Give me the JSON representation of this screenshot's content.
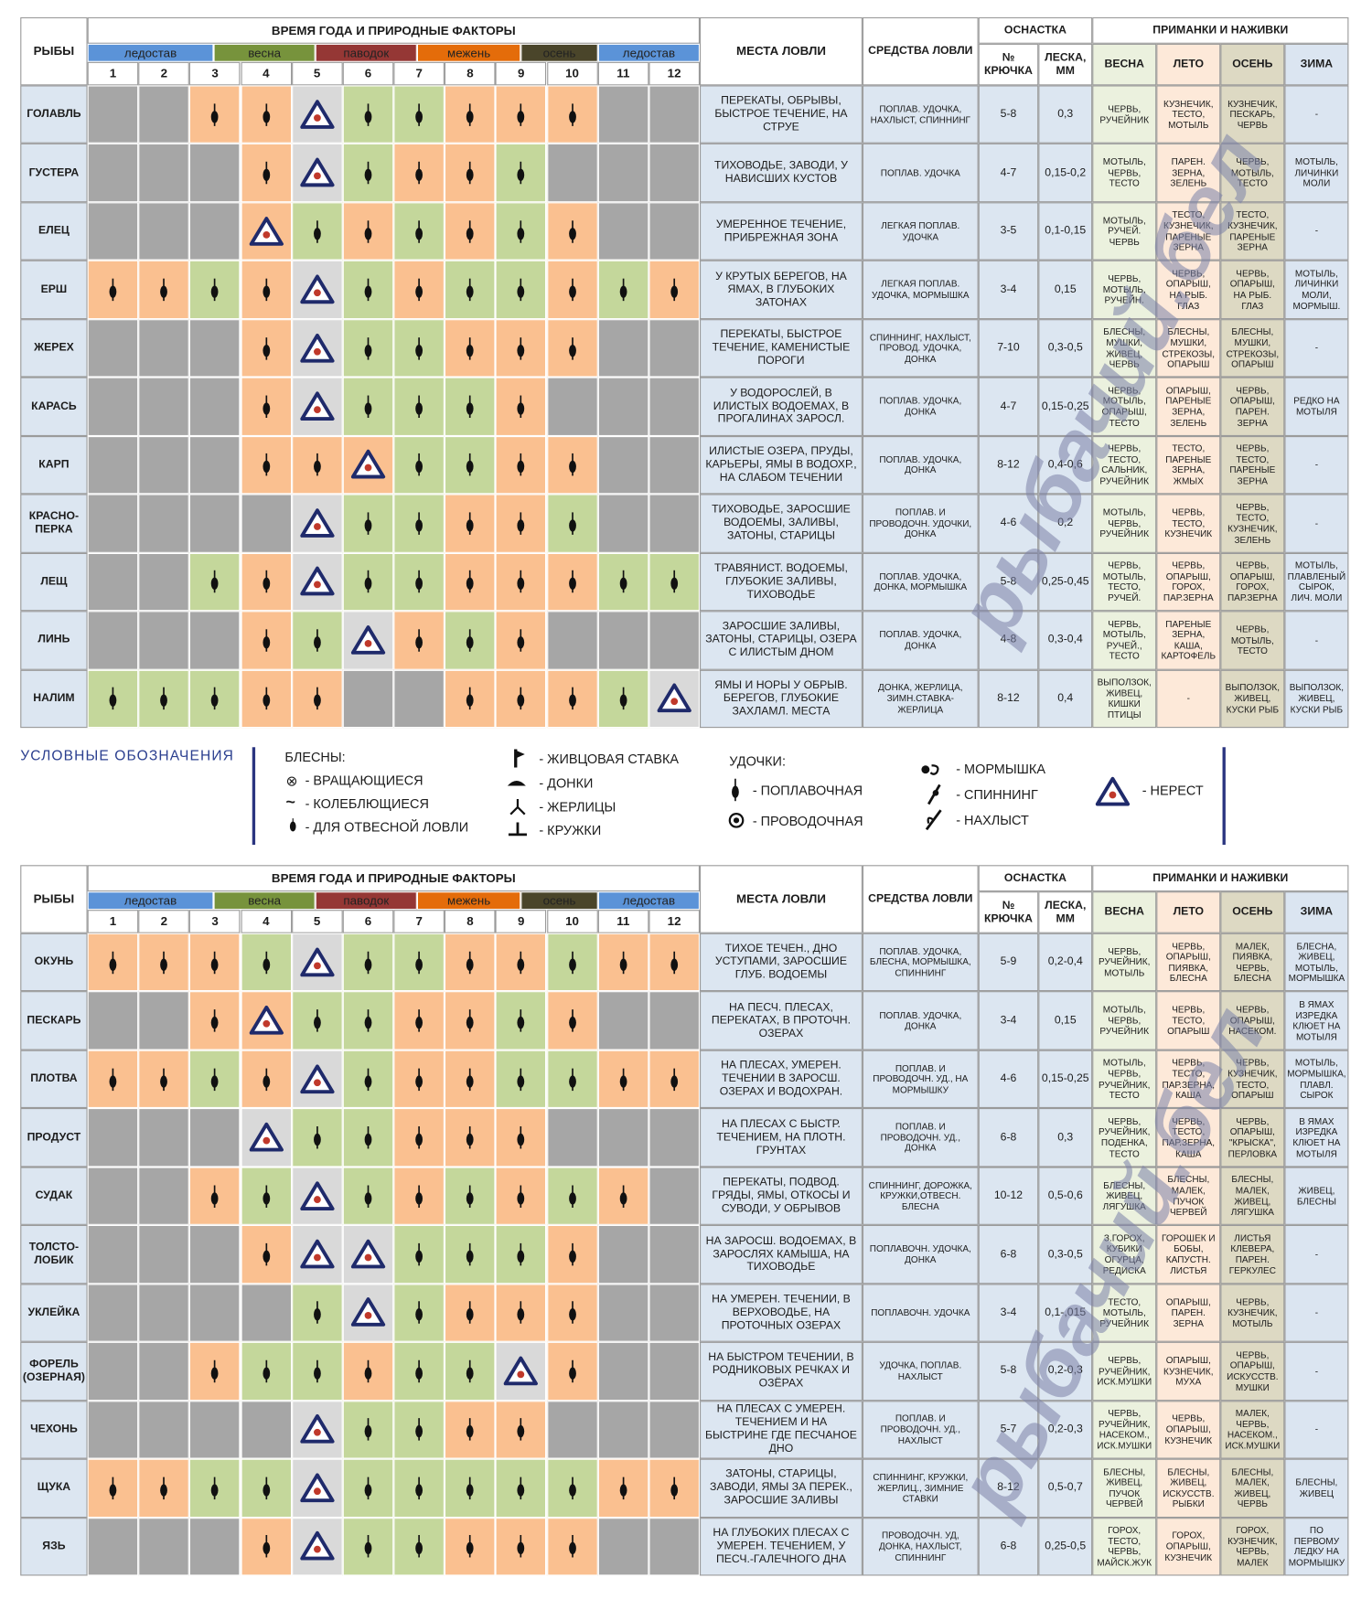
{
  "header": {
    "fish": "РЫБЫ",
    "time": "ВРЕМЯ ГОДА И ПРИРОДНЫЕ ФАКТОРЫ",
    "seasons": [
      {
        "name": "ледостав",
        "color": "#5b93d8"
      },
      {
        "name": "весна",
        "color": "#77933c"
      },
      {
        "name": "паводок",
        "color": "#953735"
      },
      {
        "name": "межень",
        "color": "#e46c0a"
      },
      {
        "name": "осень",
        "color": "#4a452a"
      },
      {
        "name": "ледостав",
        "color": "#5b93d8"
      }
    ],
    "months": [
      1,
      2,
      3,
      4,
      5,
      6,
      7,
      8,
      9,
      10,
      11,
      12
    ],
    "places": "МЕСТА ЛОВЛИ",
    "tackle": "СРЕДСТВА ЛОВЛИ",
    "rig": "ОСНАСТКА",
    "hook": "№ КРЮЧКА",
    "line": "ЛЕСКА, ММ",
    "baits": "ПРИМАНКИ И НАЖИВКИ",
    "bait_seasons": [
      "ВЕСНА",
      "ЛЕТО",
      "ОСЕНЬ",
      "ЗИМА"
    ]
  },
  "month_colors": {
    "gray": "#a6a6a6",
    "orange": "#fac090",
    "green": "#c4d79b",
    "spawn": "#d9d9d9",
    "spawn-orange": "#fac090"
  },
  "tables": [
    {
      "rows": [
        {
          "fish": "ГОЛАВЛЬ",
          "months": [
            "gray",
            "gray",
            "orange",
            "orange",
            "spawn",
            "green",
            "green",
            "orange",
            "orange",
            "orange",
            "gray",
            "gray"
          ],
          "places": "ПЕРЕКАТЫ, ОБРЫВЫ, БЫСТРОЕ ТЕЧЕНИЕ, НА СТРУЕ",
          "tackle": "ПОПЛАВ. УДОЧКА, НАХЛЫСТ, СПИННИНГ",
          "hook": "5-8",
          "line": "0,3",
          "baits": [
            "ЧЕРВЬ, РУЧЕЙНИК",
            "КУЗНЕЧИК, ТЕСТО, МОТЫЛЬ",
            "КУЗНЕЧИК, ПЕСКАРЬ, ЧЕРВЬ",
            "-"
          ]
        },
        {
          "fish": "ГУСТЕРА",
          "months": [
            "gray",
            "gray",
            "gray",
            "orange",
            "spawn",
            "green",
            "orange",
            "orange",
            "green",
            "gray",
            "gray",
            "gray"
          ],
          "places": "ТИХОВОДЬЕ, ЗАВОДИ, У НАВИСШИХ КУСТОВ",
          "tackle": "ПОПЛАВ. УДОЧКА",
          "hook": "4-7",
          "line": "0,15-0,2",
          "baits": [
            "МОТЫЛЬ, ЧЕРВЬ, ТЕСТО",
            "ПАРЕН. ЗЕРНА, ЗЕЛЕНЬ",
            "ЧЕРВЬ, МОТЫЛЬ, ТЕСТО",
            "МОТЫЛЬ, ЛИЧИНКИ МОЛИ"
          ]
        },
        {
          "fish": "ЕЛЕЦ",
          "months": [
            "gray",
            "gray",
            "gray",
            "spawn-orange",
            "green",
            "orange",
            "green",
            "orange",
            "green",
            "orange",
            "gray",
            "gray"
          ],
          "places": "УМЕРЕННОЕ ТЕЧЕНИЕ, ПРИБРЕЖНАЯ ЗОНА",
          "tackle": "ЛЕГКАЯ ПОПЛАВ. УДОЧКА",
          "hook": "3-5",
          "line": "0,1-0,15",
          "baits": [
            "МОТЫЛЬ, РУЧЕЙ. ЧЕРВЬ",
            "ТЕСТО, КУЗНЕЧИК, ПАРЕНЫЕ ЗЕРНА",
            "ТЕСТО, КУЗНЕЧИК, ПАРЕНЫЕ ЗЕРНА",
            "-"
          ]
        },
        {
          "fish": "ЕРШ",
          "months": [
            "orange",
            "orange",
            "green",
            "orange",
            "spawn",
            "green",
            "orange",
            "green",
            "green",
            "orange",
            "green",
            "orange"
          ],
          "places": "У КРУТЫХ БЕРЕГОВ, НА ЯМАХ, В ГЛУБОКИХ ЗАТОНАХ",
          "tackle": "ЛЕГКАЯ ПОПЛАВ. УДОЧКА, МОРМЫШКА",
          "hook": "3-4",
          "line": "0,15",
          "baits": [
            "ЧЕРВЬ, МОТЫЛЬ, РУЧЕЙН.",
            "ЧЕРВЬ, ОПАРЫШ, НА РЫБ. ГЛАЗ",
            "ЧЕРВЬ, ОПАРЫШ, НА РЫБ. ГЛАЗ",
            "МОТЫЛЬ, ЛИЧИНКИ МОЛИ, МОРМЫШ."
          ]
        },
        {
          "fish": "ЖЕРЕХ",
          "months": [
            "gray",
            "gray",
            "gray",
            "orange",
            "spawn",
            "green",
            "green",
            "orange",
            "orange",
            "orange",
            "gray",
            "gray"
          ],
          "places": "ПЕРЕКАТЫ, БЫСТРОЕ ТЕЧЕНИЕ, КАМЕНИСТЫЕ ПОРОГИ",
          "tackle": "СПИННИНГ, НАХЛЫСТ, ПРОВОД. УДОЧКА, ДОНКА",
          "hook": "7-10",
          "line": "0,3-0,5",
          "baits": [
            "БЛЕСНЫ, МУШКИ, ЖИВЕЦ, ЧЕРВЬ",
            "БЛЕСНЫ, МУШКИ, СТРЕКОЗЫ, ОПАРЫШ",
            "БЛЕСНЫ, МУШКИ, СТРЕКОЗЫ, ОПАРЫШ",
            "-"
          ]
        },
        {
          "fish": "КАРАСЬ",
          "months": [
            "gray",
            "gray",
            "gray",
            "orange",
            "spawn",
            "green",
            "green",
            "green",
            "orange",
            "gray",
            "gray",
            "gray"
          ],
          "places": "У ВОДОРОСЛЕЙ, В ИЛИСТЫХ ВОДОЕМАХ, В ПРОГАЛИНАХ ЗАРОСЛ.",
          "tackle": "ПОПЛАВ. УДОЧКА, ДОНКА",
          "hook": "4-7",
          "line": "0,15-0,25",
          "baits": [
            "ЧЕРВЬ, МОТЫЛЬ, ОПАРЫШ, ТЕСТО",
            "ОПАРЫШ, ПАРЕНЫЕ ЗЕРНА, ЗЕЛЕНЬ",
            "ЧЕРВЬ, ОПАРЫШ, ПАРЕН. ЗЕРНА",
            "РЕДКО НА МОТЫЛЯ"
          ]
        },
        {
          "fish": "КАРП",
          "months": [
            "gray",
            "gray",
            "gray",
            "orange",
            "orange",
            "spawn-orange",
            "green",
            "green",
            "orange",
            "orange",
            "gray",
            "gray"
          ],
          "places": "ИЛИСТЫЕ ОЗЕРА, ПРУДЫ, КАРЬЕРЫ, ЯМЫ В ВОДОХР., НА СЛАБОМ ТЕЧЕНИИ",
          "tackle": "ПОПЛАВ. УДОЧКА, ДОНКА",
          "hook": "8-12",
          "line": "0,4-0,6",
          "baits": [
            "ЧЕРВЬ, ТЕСТО, САЛЬНИК, РУЧЕЙНИК",
            "ТЕСТО, ПАРЕНЫЕ ЗЕРНА, ЖМЫХ",
            "ЧЕРВЬ, ТЕСТО, ПАРЕНЫЕ ЗЕРНА",
            "-"
          ]
        },
        {
          "fish": "КРАСНО-ПЕРКА",
          "months": [
            "gray",
            "gray",
            "gray",
            "gray",
            "spawn",
            "green",
            "green",
            "orange",
            "orange",
            "green",
            "gray",
            "gray"
          ],
          "places": "ТИХОВОДЬЕ, ЗАРОСШИЕ ВОДОЕМЫ, ЗАЛИВЫ, ЗАТОНЫ, СТАРИЦЫ",
          "tackle": "ПОПЛАВ. И ПРОВОДОЧН. УДОЧКИ, ДОНКА",
          "hook": "4-6",
          "line": "0,2",
          "baits": [
            "МОТЫЛЬ, ЧЕРВЬ, РУЧЕЙНИК",
            "ЧЕРВЬ, ТЕСТО, КУЗНЕЧИК",
            "ЧЕРВЬ, ТЕСТО, КУЗНЕЧИК, ЗЕЛЕНЬ",
            "-"
          ]
        },
        {
          "fish": "ЛЕЩ",
          "months": [
            "gray",
            "gray",
            "green",
            "orange",
            "spawn",
            "green",
            "green",
            "orange",
            "orange",
            "orange",
            "green",
            "green"
          ],
          "places": "ТРАВЯНИСТ. ВОДОЕМЫ, ГЛУБОКИЕ ЗАЛИВЫ, ТИХОВОДЬЕ",
          "tackle": "ПОПЛАВ. УДОЧКА, ДОНКА, МОРМЫШКА",
          "hook": "5-8",
          "line": "0,25-0,45",
          "baits": [
            "ЧЕРВЬ, МОТЫЛЬ, ТЕСТО, РУЧЕЙ.",
            "ЧЕРВЬ, ОПАРЫШ, ГОРОХ, ПАР.ЗЕРНА",
            "ЧЕРВЬ, ОПАРЫШ, ГОРОХ, ПАР.ЗЕРНА",
            "МОТЫЛЬ, ПЛАВЛЕНЫЙ СЫРОК, ЛИЧ. МОЛИ"
          ]
        },
        {
          "fish": "ЛИНЬ",
          "months": [
            "gray",
            "gray",
            "gray",
            "orange",
            "green",
            "spawn",
            "orange",
            "green",
            "orange",
            "gray",
            "gray",
            "gray"
          ],
          "places": "ЗАРОСШИЕ ЗАЛИВЫ, ЗАТОНЫ, СТАРИЦЫ, ОЗЕРА С ИЛИСТЫМ ДНОМ",
          "tackle": "ПОПЛАВ. УДОЧКА, ДОНКА",
          "hook": "4-8",
          "line": "0,3-0,4",
          "baits": [
            "ЧЕРВЬ, МОТЫЛЬ, РУЧЕЙ., ТЕСТО",
            "ПАРЕНЫЕ ЗЕРНА, КАША, КАРТОФЕЛЬ",
            "ЧЕРВЬ, МОТЫЛЬ, ТЕСТО",
            "-"
          ]
        },
        {
          "fish": "НАЛИМ",
          "months": [
            "green",
            "green",
            "green",
            "orange",
            "orange",
            "gray",
            "gray",
            "orange",
            "orange",
            "orange",
            "green",
            "spawn"
          ],
          "places": "ЯМЫ И НОРЫ У ОБРЫВ. БЕРЕГОВ, ГЛУБОКИЕ ЗАХЛАМЛ. МЕСТА",
          "tackle": "ДОНКА, ЖЕРЛИЦА, ЗИМН.СТАВКА-ЖЕРЛИЦА",
          "hook": "8-12",
          "line": "0,4",
          "baits": [
            "ВЫПОЛЗОК, ЖИВЕЦ, КИШКИ ПТИЦЫ",
            "-",
            "ВЫПОЛЗОК, ЖИВЕЦ, КУСКИ РЫБ",
            "ВЫПОЛЗОК, ЖИВЕЦ, КУСКИ РЫБ"
          ]
        }
      ]
    },
    {
      "rows": [
        {
          "fish": "ОКУНЬ",
          "months": [
            "orange",
            "orange",
            "orange",
            "green",
            "spawn",
            "green",
            "green",
            "orange",
            "orange",
            "green",
            "orange",
            "orange"
          ],
          "places": "ТИХОЕ ТЕЧЕН., ДНО УСТУПАМИ, ЗАРОСШИЕ ГЛУБ. ВОДОЕМЫ",
          "tackle": "ПОПЛАВ. УДОЧКА, БЛЕСНА, МОРМЫШКА, СПИННИНГ",
          "hook": "5-9",
          "line": "0,2-0,4",
          "baits": [
            "ЧЕРВЬ, РУЧЕЙНИК, МОТЫЛЬ",
            "ЧЕРВЬ, ОПАРЫШ, ПИЯВКА, БЛЕСНА",
            "МАЛЕК, ПИЯВКА, ЧЕРВЬ, БЛЕСНА",
            "БЛЕСНА, ЖИВЕЦ, МОТЫЛЬ, МОРМЫШКА"
          ]
        },
        {
          "fish": "ПЕСКАРЬ",
          "months": [
            "gray",
            "gray",
            "orange",
            "spawn-orange",
            "green",
            "green",
            "orange",
            "orange",
            "green",
            "orange",
            "gray",
            "gray"
          ],
          "places": "НА ПЕСЧ. ПЛЕСАХ, ПЕРЕКАТАХ, В ПРОТОЧН. ОЗЕРАХ",
          "tackle": "ПОПЛАВ. УДОЧКА, ДОНКА",
          "hook": "3-4",
          "line": "0,15",
          "baits": [
            "МОТЫЛЬ, ЧЕРВЬ, РУЧЕЙНИК",
            "ЧЕРВЬ, ТЕСТО, ОПАРЫШ",
            "ЧЕРВЬ, ОПАРЫШ, НАСЕКОМ.",
            "В ЯМАХ ИЗРЕДКА КЛЮЕТ НА МОТЫЛЯ"
          ]
        },
        {
          "fish": "ПЛОТВА",
          "months": [
            "orange",
            "orange",
            "green",
            "orange",
            "spawn",
            "green",
            "orange",
            "orange",
            "green",
            "green",
            "orange",
            "orange"
          ],
          "places": "НА ПЛЕСАХ, УМЕРЕН. ТЕЧЕНИИ В ЗАРОСШ. ОЗЕРАХ И ВОДОХРАН.",
          "tackle": "ПОПЛАВ. И ПРОВОДОЧН. УД., НА МОРМЫШКУ",
          "hook": "4-6",
          "line": "0,15-0,25",
          "baits": [
            "МОТЫЛЬ, ЧЕРВЬ, РУЧЕЙНИК, ТЕСТО",
            "ЧЕРВЬ, ТЕСТО, ПАР.ЗЕРНА, КАША",
            "ЧЕРВЬ, КУЗНЕЧИК, ТЕСТО, ОПАРЫШ",
            "МОТЫЛЬ, МОРМЫШКА, ПЛАВЛ. СЫРОК"
          ]
        },
        {
          "fish": "ПРОДУСТ",
          "months": [
            "gray",
            "gray",
            "gray",
            "spawn",
            "green",
            "green",
            "orange",
            "orange",
            "orange",
            "gray",
            "gray",
            "gray"
          ],
          "places": "НА ПЛЕСАХ С БЫСТР. ТЕЧЕНИЕМ, НА ПЛОТН. ГРУНТАХ",
          "tackle": "ПОПЛАВ. И ПРОВОДОЧН. УД., ДОНКА",
          "hook": "6-8",
          "line": "0,3",
          "baits": [
            "ЧЕРВЬ, РУЧЕЙНИК, ПОДЕНКА, ТЕСТО",
            "ЧЕРВЬ, ТЕСТО, ПАР.ЗЕРНА, КАША",
            "ЧЕРВЬ, ОПАРЫШ, \"КРЫСКА\", ПЕРЛОВКА",
            "В ЯМАХ ИЗРЕДКА КЛЮЕТ НА МОТЫЛЯ"
          ]
        },
        {
          "fish": "СУДАК",
          "months": [
            "gray",
            "gray",
            "orange",
            "green",
            "spawn",
            "green",
            "orange",
            "green",
            "orange",
            "green",
            "orange",
            "gray"
          ],
          "places": "ПЕРЕКАТЫ, ПОДВОД. ГРЯДЫ, ЯМЫ, ОТКОСЫ И СУВОДИ, У ОБРЫВОВ",
          "tackle": "СПИННИНГ, ДОРОЖКА, КРУЖКИ,ОТВЕСН. БЛЕСНА",
          "hook": "10-12",
          "line": "0,5-0,6",
          "baits": [
            "БЛЕСНЫ, ЖИВЕЦ, ЛЯГУШКА",
            "БЛЕСНЫ, МАЛЕК, ПУЧОК ЧЕРВЕЙ",
            "БЛЕСНЫ, МАЛЕК, ЖИВЕЦ, ЛЯГУШКА",
            "ЖИВЕЦ, БЛЕСНЫ"
          ]
        },
        {
          "fish": "ТОЛСТО-ЛОБИК",
          "months": [
            "gray",
            "gray",
            "gray",
            "orange",
            "spawn",
            "spawn",
            "green",
            "green",
            "green",
            "orange",
            "gray",
            "gray"
          ],
          "places": "НА ЗАРОСШ. ВОДОЕМАХ, В ЗАРОСЛЯХ КАМЫША, НА ТИХОВОДЬЕ",
          "tackle": "ПОПЛАВОЧН. УДОЧКА, ДОНКА",
          "hook": "6-8",
          "line": "0,3-0,5",
          "baits": [
            "З.ГОРОХ, КУБИКИ ОГУРЦА, РЕДИСКА",
            "ГОРОШЕК И БОБЫ, КАПУСТН. ЛИСТЬЯ",
            "ЛИСТЬЯ КЛЕВЕРА, ПАРЕН. ГЕРКУЛЕС",
            "-"
          ]
        },
        {
          "fish": "УКЛЕЙКА",
          "months": [
            "gray",
            "gray",
            "gray",
            "gray",
            "green",
            "spawn",
            "green",
            "orange",
            "orange",
            "orange",
            "gray",
            "gray"
          ],
          "places": "НА УМЕРЕН. ТЕЧЕНИИ, В ВЕРХОВОДЬЕ, НА ПРОТОЧНЫХ ОЗЕРАХ",
          "tackle": "ПОПЛАВОЧН. УДОЧКА",
          "hook": "3-4",
          "line": "0,1-,015",
          "baits": [
            "ТЕСТО, МОТЫЛЬ, РУЧЕЙНИК",
            "ОПАРЫШ, ПАРЕН. ЗЕРНА",
            "ЧЕРВЬ, КУЗНЕЧИК, МОТЫЛЬ",
            "-"
          ]
        },
        {
          "fish": "ФОРЕЛЬ (ОЗЕРНАЯ)",
          "months": [
            "gray",
            "gray",
            "orange",
            "green",
            "green",
            "orange",
            "green",
            "green",
            "spawn",
            "orange",
            "gray",
            "gray"
          ],
          "places": "НА БЫСТРОМ ТЕЧЕНИИ, В РОДНИКОВЫХ РЕЧКАХ И ОЗЁРАХ",
          "tackle": "УДОЧКА, ПОПЛАВ. НАХЛЫСТ",
          "hook": "5-8",
          "line": "0,2-0,3",
          "baits": [
            "ЧЕРВЬ, РУЧЕЙНИК, ИСК.МУШКИ",
            "ОПАРЫШ, КУЗНЕЧИК, МУХА",
            "ЧЕРВЬ, ОПАРЫШ, ИСКУССТВ. МУШКИ",
            "-"
          ]
        },
        {
          "fish": "ЧЕХОНЬ",
          "months": [
            "gray",
            "gray",
            "gray",
            "gray",
            "spawn",
            "green",
            "green",
            "orange",
            "orange",
            "gray",
            "gray",
            "gray"
          ],
          "places": "НА ПЛЕСАХ С УМЕРЕН. ТЕЧЕНИЕМ И НА БЫСТРИНЕ ГДЕ ПЕСЧАНОЕ ДНО",
          "tackle": "ПОПЛАВ. И ПРОВОДОЧН. УД., НАХЛЫСТ",
          "hook": "5-7",
          "line": "0,2-0,3",
          "baits": [
            "ЧЕРВЬ, РУЧЕЙНИК, НАСЕКОМ., ИСК.МУШКИ",
            "ЧЕРВЬ, ОПАРЫШ, КУЗНЕЧИК",
            "МАЛЕК, ЧЕРВЬ, НАСЕКОМ., ИСК.МУШКИ",
            "-"
          ]
        },
        {
          "fish": "ЩУКА",
          "months": [
            "orange",
            "orange",
            "green",
            "green",
            "spawn",
            "green",
            "green",
            "green",
            "green",
            "green",
            "orange",
            "orange"
          ],
          "places": "ЗАТОНЫ, СТАРИЦЫ, ЗАВОДИ, ЯМЫ ЗА ПЕРЕК., ЗАРОСШИЕ ЗАЛИВЫ",
          "tackle": "СПИННИНГ, КРУЖКИ, ЖЕРЛИЦ., ЗИМНИЕ СТАВКИ",
          "hook": "8-12",
          "line": "0,5-0,7",
          "baits": [
            "БЛЕСНЫ, ЖИВЕЦ, ПУЧОК ЧЕРВЕЙ",
            "БЛЕСНЫ, ЖИВЕЦ, ИСКУССТВ. РЫБКИ",
            "БЛЕСНЫ, МАЛЕК, ЖИВЕЦ, ЧЕРВЬ",
            "БЛЕСНЫ, ЖИВЕЦ"
          ]
        },
        {
          "fish": "ЯЗЬ",
          "months": [
            "gray",
            "gray",
            "gray",
            "orange",
            "spawn",
            "green",
            "green",
            "orange",
            "orange",
            "orange",
            "gray",
            "gray"
          ],
          "places": "НА ГЛУБОКИХ ПЛЕСАХ С УМЕРЕН. ТЕЧЕНИЕМ, У ПЕСЧ.-ГАЛЕЧНОГО ДНА",
          "tackle": "ПРОВОДОЧН. УД, ДОНКА, НАХЛЫСТ, СПИННИНГ",
          "hook": "6-8",
          "line": "0,25-0,5",
          "baits": [
            "ГОРОХ, ТЕСТО, ЧЕРВЬ, МАЙСК.ЖУК",
            "ГОРОХ, ОПАРЫШ, КУЗНЕЧИК",
            "ГОРОХ, КУЗНЕЧИК, ЧЕРВЬ, МАЛЕК",
            "ПО ПЕРВОМУ ЛЕДКУ НА МОРМЫШКУ"
          ]
        }
      ]
    }
  ],
  "legend": {
    "title": "УСЛОВНЫЕ ОБОЗНАЧЕНИЯ",
    "lures": "БЛЕСНЫ:",
    "spinning_lure": "- ВРАЩАЮЩИЕСЯ",
    "wobbler": "- КОЛЕБЛЮЩИЕСЯ",
    "jig": "- ДЛЯ ОТВЕСНОЙ ЛОВЛИ",
    "live_bait": "- ЖИВЦОВАЯ СТАВКА",
    "bottom": "- ДОНКИ",
    "zherlitsa": "- ЖЕРЛИЦЫ",
    "circles": "- КРУЖКИ",
    "rods": "УДОЧКИ:",
    "float": "- ПОПЛАВОЧНАЯ",
    "running": "- ПРОВОДОЧНАЯ",
    "mormyshka": "- МОРМЫШКА",
    "spinning": "- СПИННИНГ",
    "fly": "- НАХЛЫСТ",
    "spawn": "- НЕРЕСТ"
  },
  "watermark": "рыбачий.бел"
}
